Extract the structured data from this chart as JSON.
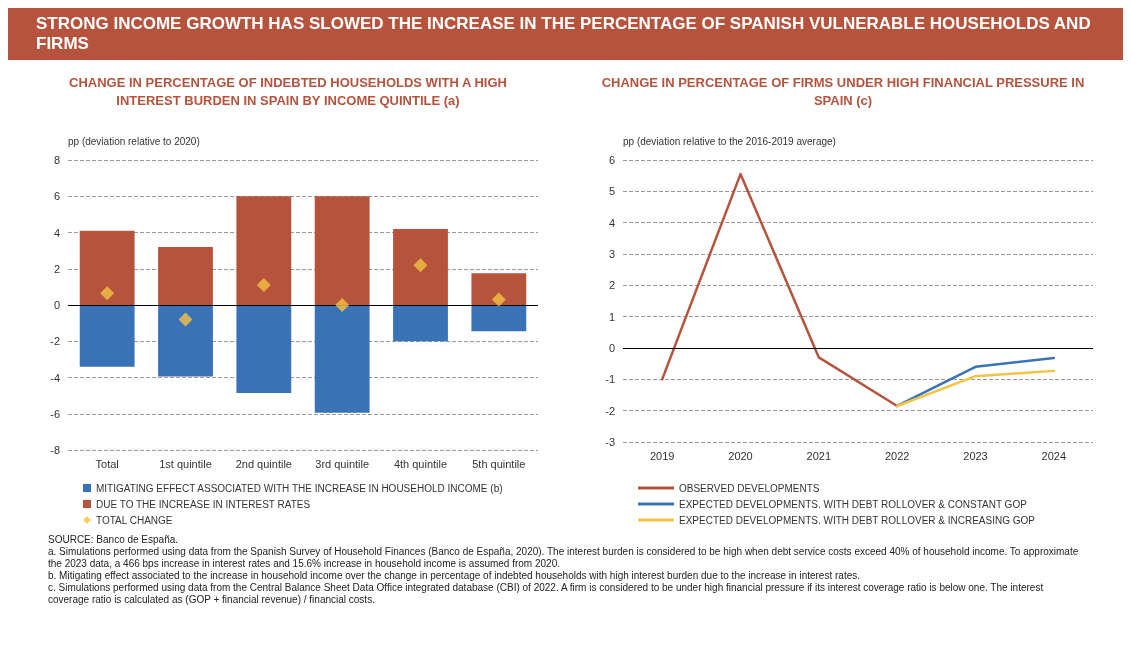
{
  "chart_data": [
    {
      "type": "bar",
      "title": "CHANGE IN PERCENTAGE OF INDEBTED HOUSEHOLDS WITH A HIGH\nINTEREST BURDEN IN SPAIN BY INCOME QUINTILE (a)",
      "ylabel": "pp (deviation relative to 2020)",
      "annotations": [
        "STRONG INCOME GROWTH HAS SLOWED THE INCREASE IN THE PERCENTAGE OF SPANISH VULNERABLE HOUSEHOLDS AND FIRMS"
      ],
      "categories": [
        "Total",
        "1st quintile",
        "2nd quintile",
        "3rd quintile",
        "4th quintile",
        "5th quintile"
      ],
      "stacked": true,
      "ylim": [
        -8,
        8
      ],
      "yticks": [
        -8,
        -6,
        -4,
        -2,
        0,
        2,
        4,
        6,
        8
      ],
      "grid": "y",
      "legend": "bottom",
      "series": [
        {
          "name": "MITIGATING EFFECT ASSOCIATED WITH THE INCREASE IN HOUSEHOLD INCOME (b)",
          "color": "#3a72b8",
          "values": [
            -3.4,
            -3.95,
            -4.85,
            -5.95,
            -2.0,
            -1.45
          ]
        },
        {
          "name": "DUE TO THE INCREASE IN INTEREST RATES",
          "color": "#b5533c",
          "values": [
            4.1,
            3.2,
            6.0,
            6.0,
            4.2,
            1.75
          ]
        },
        {
          "name": "TOTAL CHANGE",
          "type": "scatter",
          "marker": "diamond",
          "color": "#f5c242",
          "x": [
            "Total",
            "1st quintile",
            "2nd quintile",
            "3rd quintile",
            "4th quintile",
            "5th quintile"
          ],
          "values": [
            0.65,
            -0.8,
            1.1,
            0.0,
            2.2,
            0.3
          ]
        }
      ]
    },
    {
      "type": "line",
      "title": "CHANGE IN PERCENTAGE OF FIRMS UNDER HIGH FINANCIAL PRESSURE IN\nSPAIN (c)",
      "ylabel": "pp (deviation relative to the 2016-2019 average)",
      "categories": [
        "2019",
        "2020",
        "2021",
        "2022",
        "2023",
        "2024"
      ],
      "ylim": [
        -3,
        6
      ],
      "yticks": [
        -3,
        -2,
        -1,
        0,
        1,
        2,
        3,
        4,
        5,
        6
      ],
      "grid": "y",
      "legend": "bottom",
      "marker": "none",
      "line_style": "solid",
      "annotations": [
        "SOURCE: Banco de España.",
        "a. Simulations performed using data from the Spanish Survey of Household Finances (Banco de España, 2020). The interest burden is considered to be high when debt service costs exceed 40% of household income. To approximate the 2023 data, a 466 bps increase in interest rates and 15.6% increase in household income is assumed from 2020.",
        "b. Mitigating effect associated to the increase in household income over the change in percentage of indebted households with high interest burden due to the increase in interest rates.",
        "c. Simulations performed using data from the Central Balance Sheet Data Office integrated database (CBI) of 2022. A firm is considered to be under high financial pressure if its interest coverage ratio is below one. The interest coverage ratio is calculated as (GOP + financial revenue) / financial costs."
      ],
      "series": [
        {
          "name": "OBSERVED DEVELOPMENTS",
          "color": "#b5533c",
          "values": [
            -1.0,
            5.55,
            -0.3,
            -1.85,
            null,
            null
          ]
        },
        {
          "name": "EXPECTED DEVELOPMENTS. WITH DEBT ROLLOVER & CONSTANT GOP",
          "color": "#3a72b8",
          "values": [
            null,
            null,
            null,
            -1.85,
            -0.6,
            -0.32
          ]
        },
        {
          "name": "EXPECTED DEVELOPMENTS. WITH DEBT ROLLOVER & INCREASING GOP",
          "color": "#f5c242",
          "values": [
            null,
            null,
            null,
            -1.85,
            -0.9,
            -0.73
          ]
        }
      ]
    }
  ]
}
